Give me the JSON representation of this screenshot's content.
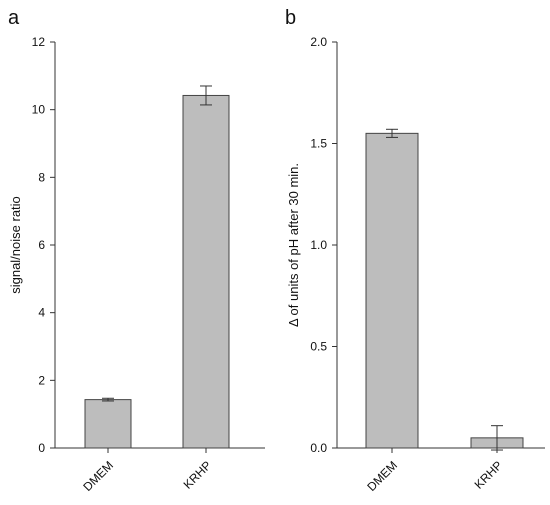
{
  "colors": {
    "bar_fill": "#bdbdbd",
    "bar_stroke": "#444444",
    "axis": "#333333"
  },
  "chart_data": [
    {
      "type": "bar",
      "panel_label": "a",
      "categories": [
        "DMEM",
        "KRHP"
      ],
      "values": [
        1.43,
        10.42
      ],
      "errors": [
        0.04,
        0.28
      ],
      "ylabel": "signal/noise ratio",
      "xlabel": "",
      "ylim": [
        0,
        12
      ],
      "yticks": [
        0,
        2,
        4,
        6,
        8,
        10,
        12
      ],
      "ytick_labels": [
        "0",
        "2",
        "4",
        "6",
        "8",
        "10",
        "12"
      ],
      "grid": false,
      "legend": "none"
    },
    {
      "type": "bar",
      "panel_label": "b",
      "categories": [
        "DMEM",
        "KRHP"
      ],
      "values": [
        1.55,
        0.05
      ],
      "errors": [
        0.02,
        0.06
      ],
      "ylabel": "Δ of units of pH after 30 min.",
      "xlabel": "",
      "ylim": [
        0,
        2
      ],
      "yticks": [
        0,
        0.5,
        1,
        1.5,
        2
      ],
      "ytick_labels": [
        "0.0",
        "0.5",
        "1.0",
        "1.5",
        "2.0"
      ],
      "grid": false,
      "legend": "none"
    }
  ]
}
